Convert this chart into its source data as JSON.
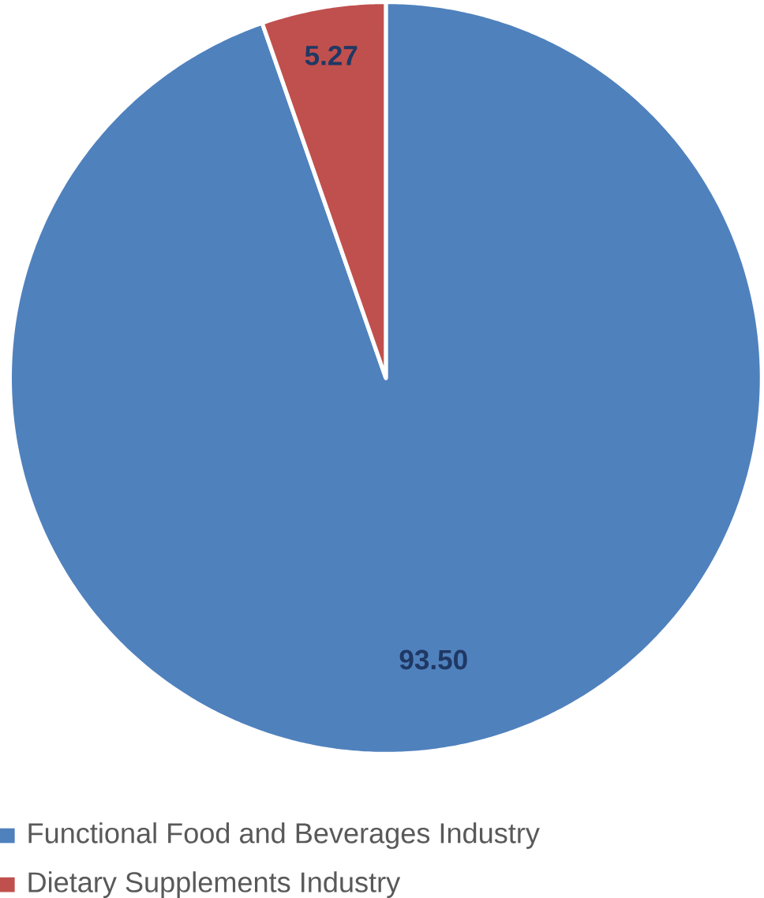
{
  "chart_data": {
    "type": "pie",
    "categories": [
      "Functional Food and Beverages Industry",
      "Dietary Supplements Industry"
    ],
    "values": [
      93.5,
      5.27
    ],
    "value_labels": [
      "93.50",
      "5.27"
    ],
    "colors": [
      "#4f81bd",
      "#c0504d"
    ],
    "legend": "bottom"
  }
}
